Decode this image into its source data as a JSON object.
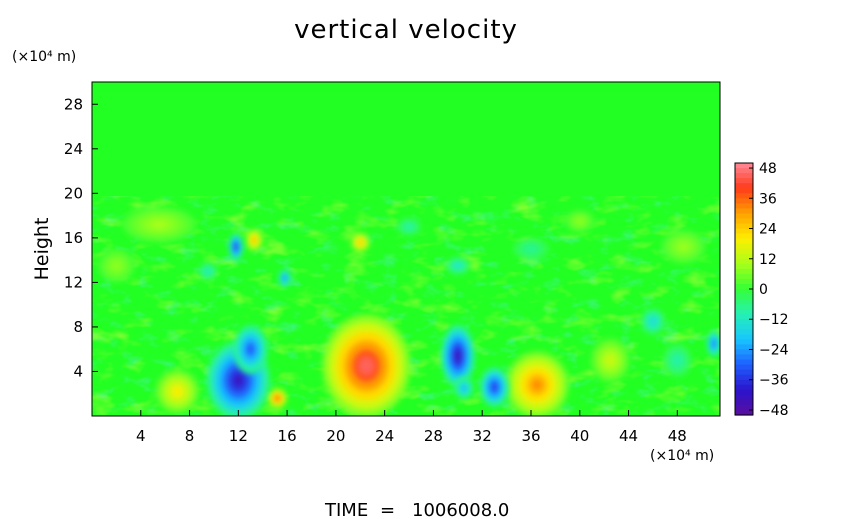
{
  "chart_data": {
    "type": "heatmap",
    "title": "vertical velocity",
    "ylabel": "Height",
    "x_unit": "(×10⁴ m)",
    "y_unit": "(×10⁴ m)",
    "xlim": [
      0,
      51.5
    ],
    "ylim": [
      0,
      30
    ],
    "x_ticks": [
      4,
      8,
      12,
      16,
      20,
      24,
      28,
      32,
      36,
      40,
      44,
      48
    ],
    "y_ticks": [
      4,
      8,
      12,
      16,
      20,
      24,
      28
    ],
    "colorbar": {
      "min": -50,
      "max": 50,
      "ticks": [
        48,
        36,
        24,
        12,
        0,
        -12,
        -24,
        -36,
        -48
      ],
      "colors": [
        "#5a0ea0",
        "#2a14cc",
        "#1f5fff",
        "#18c6ff",
        "#25f0b4",
        "#35ff35",
        "#a8ff1a",
        "#ffee00",
        "#ffa000",
        "#ff3a1a",
        "#ff8a9a"
      ]
    },
    "background_value": 0,
    "features": [
      {
        "x": 22.5,
        "y": 4.5,
        "rx": 3.6,
        "ry": 4.6,
        "value": 45
      },
      {
        "x": 36.5,
        "y": 2.8,
        "rx": 2.6,
        "ry": 3.0,
        "value": 32
      },
      {
        "x": 7,
        "y": 2.2,
        "rx": 1.8,
        "ry": 2.0,
        "value": 20
      },
      {
        "x": 15.2,
        "y": 1.6,
        "rx": 0.8,
        "ry": 0.9,
        "value": 38
      },
      {
        "x": 42.5,
        "y": 5.0,
        "rx": 1.6,
        "ry": 2.0,
        "value": 14
      },
      {
        "x": 12.0,
        "y": 3.2,
        "rx": 2.6,
        "ry": 3.5,
        "value": -42
      },
      {
        "x": 13.0,
        "y": 6.0,
        "rx": 1.4,
        "ry": 2.2,
        "value": -32
      },
      {
        "x": 30.0,
        "y": 5.4,
        "rx": 1.4,
        "ry": 2.8,
        "value": -44
      },
      {
        "x": 33.0,
        "y": 2.6,
        "rx": 1.2,
        "ry": 1.8,
        "value": -36
      },
      {
        "x": 30.5,
        "y": 2.5,
        "rx": 0.8,
        "ry": 1.0,
        "value": -22
      },
      {
        "x": 13.3,
        "y": 15.8,
        "rx": 0.7,
        "ry": 1.0,
        "value": 28
      },
      {
        "x": 22.0,
        "y": 15.6,
        "rx": 0.8,
        "ry": 0.9,
        "value": 26
      },
      {
        "x": 11.8,
        "y": 15.2,
        "rx": 0.6,
        "ry": 1.2,
        "value": -40
      },
      {
        "x": 15.8,
        "y": 12.4,
        "rx": 0.5,
        "ry": 0.8,
        "value": -28
      },
      {
        "x": 51.0,
        "y": 6.5,
        "rx": 0.6,
        "ry": 1.2,
        "value": -30
      },
      {
        "x": 48.0,
        "y": 5.0,
        "rx": 1.2,
        "ry": 1.5,
        "value": -10
      },
      {
        "x": 46.0,
        "y": 8.5,
        "rx": 1.0,
        "ry": 1.2,
        "value": -16
      },
      {
        "x": 5.5,
        "y": 17.2,
        "rx": 3.0,
        "ry": 1.6,
        "value": 10
      },
      {
        "x": 48.5,
        "y": 15.2,
        "rx": 1.8,
        "ry": 1.5,
        "value": 9
      },
      {
        "x": 30.0,
        "y": 13.5,
        "rx": 1.0,
        "ry": 0.8,
        "value": -14
      },
      {
        "x": 9.5,
        "y": 13.0,
        "rx": 0.8,
        "ry": 0.8,
        "value": -12
      },
      {
        "x": 26.0,
        "y": 17.0,
        "rx": 1.0,
        "ry": 0.8,
        "value": -10
      },
      {
        "x": 40.0,
        "y": 17.5,
        "rx": 1.2,
        "ry": 1.0,
        "value": 8
      },
      {
        "x": 2.0,
        "y": 13.5,
        "rx": 1.5,
        "ry": 1.5,
        "value": 8
      },
      {
        "x": 36.0,
        "y": 15.0,
        "rx": 1.5,
        "ry": 1.0,
        "value": -8
      }
    ]
  },
  "footer": {
    "time_label": "TIME",
    "equals": "=",
    "time_value": "1006008.0"
  }
}
